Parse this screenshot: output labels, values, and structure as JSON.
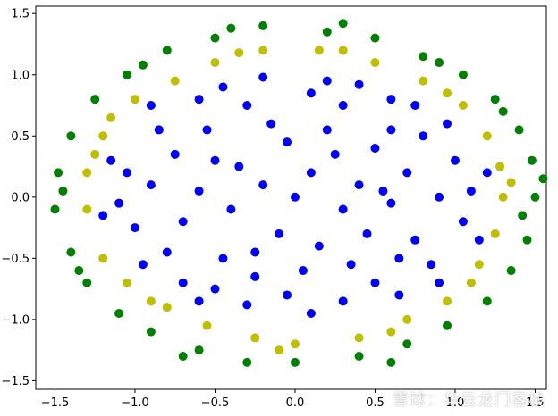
{
  "chart_data": {
    "type": "scatter",
    "title": "",
    "xlabel": "",
    "ylabel": "",
    "xlim": [
      -1.62,
      1.57
    ],
    "ylim": [
      -1.57,
      1.56
    ],
    "grid": false,
    "legend": "none",
    "x_ticks": [
      -1.5,
      -1.0,
      -0.5,
      0.0,
      0.5,
      1.0,
      1.5
    ],
    "x_tick_labels": [
      "−1.5",
      "−1.0",
      "−0.5",
      "0.0",
      "0.5",
      "1.0",
      "1.5"
    ],
    "y_ticks": [
      -1.5,
      -1.0,
      -0.5,
      0.0,
      0.5,
      1.0,
      1.5
    ],
    "y_tick_labels": [
      "−1.5",
      "−1.0",
      "−0.5",
      "0.0",
      "0.5",
      "1.0",
      "1.5"
    ],
    "series": [
      {
        "color": "#0000ff",
        "points": [
          [
            0.0,
            0.0
          ],
          [
            0.1,
            0.2
          ],
          [
            -0.2,
            0.1
          ],
          [
            0.3,
            -0.1
          ],
          [
            -0.1,
            -0.3
          ],
          [
            0.25,
            0.35
          ],
          [
            -0.35,
            0.25
          ],
          [
            0.4,
            0.1
          ],
          [
            -0.4,
            -0.1
          ],
          [
            0.15,
            -0.4
          ],
          [
            -0.25,
            -0.45
          ],
          [
            0.45,
            -0.3
          ],
          [
            -0.5,
            0.3
          ],
          [
            0.5,
            0.4
          ],
          [
            0.2,
            0.55
          ],
          [
            -0.15,
            0.6
          ],
          [
            0.6,
            -0.05
          ],
          [
            -0.6,
            0.05
          ],
          [
            0.05,
            -0.6
          ],
          [
            0.35,
            -0.55
          ],
          [
            -0.45,
            -0.5
          ],
          [
            0.6,
            0.55
          ],
          [
            -0.55,
            0.55
          ],
          [
            0.7,
            0.2
          ],
          [
            -0.7,
            -0.2
          ],
          [
            0.3,
            0.75
          ],
          [
            -0.3,
            0.75
          ],
          [
            0.75,
            -0.35
          ],
          [
            -0.75,
            0.35
          ],
          [
            0.1,
            0.85
          ],
          [
            -0.05,
            -0.8
          ],
          [
            0.5,
            -0.7
          ],
          [
            -0.5,
            -0.75
          ],
          [
            0.8,
            0.5
          ],
          [
            -0.8,
            -0.45
          ],
          [
            0.9,
            0.0
          ],
          [
            -0.9,
            0.1
          ],
          [
            0.85,
            -0.55
          ],
          [
            -0.85,
            0.55
          ],
          [
            0.6,
            0.8
          ],
          [
            -0.6,
            0.8
          ],
          [
            0.3,
            -0.85
          ],
          [
            -0.3,
            -0.88
          ],
          [
            1.0,
            0.3
          ],
          [
            -1.0,
            -0.25
          ],
          [
            1.05,
            -0.2
          ],
          [
            -1.05,
            0.2
          ],
          [
            0.95,
            0.6
          ],
          [
            -0.95,
            -0.55
          ],
          [
            0.2,
            0.95
          ],
          [
            -0.2,
            0.98
          ],
          [
            0.75,
            0.75
          ],
          [
            -0.7,
            -0.7
          ],
          [
            0.65,
            -0.8
          ],
          [
            1.1,
            0.05
          ],
          [
            -1.1,
            -0.05
          ],
          [
            1.15,
            -0.35
          ],
          [
            -1.15,
            0.3
          ],
          [
            0.4,
            0.92
          ],
          [
            -0.45,
            0.9
          ],
          [
            0.1,
            -0.95
          ],
          [
            -0.6,
            -0.85
          ],
          [
            0.9,
            -0.7
          ],
          [
            -0.9,
            0.75
          ],
          [
            1.2,
            0.2
          ],
          [
            -1.2,
            -0.15
          ],
          [
            0.55,
            0.05
          ],
          [
            -0.05,
            0.45
          ],
          [
            0.65,
            -0.5
          ],
          [
            -0.25,
            -0.65
          ]
        ]
      },
      {
        "color": "#bfbf00",
        "points": [
          [
            1.3,
            0.0
          ],
          [
            1.28,
            0.25
          ],
          [
            1.25,
            -0.3
          ],
          [
            1.2,
            0.5
          ],
          [
            1.15,
            -0.55
          ],
          [
            1.05,
            0.75
          ],
          [
            0.95,
            -0.85
          ],
          [
            0.8,
            0.95
          ],
          [
            0.7,
            -1.0
          ],
          [
            0.5,
            1.1
          ],
          [
            0.4,
            -1.15
          ],
          [
            0.15,
            1.2
          ],
          [
            0.0,
            -1.2
          ],
          [
            -0.2,
            1.2
          ],
          [
            -0.25,
            -1.15
          ],
          [
            -0.5,
            1.1
          ],
          [
            -0.55,
            -1.05
          ],
          [
            -0.75,
            0.95
          ],
          [
            -0.8,
            -0.9
          ],
          [
            -1.0,
            0.8
          ],
          [
            -1.05,
            -0.7
          ],
          [
            -1.2,
            0.5
          ],
          [
            -1.2,
            -0.5
          ],
          [
            -1.3,
            0.2
          ],
          [
            -1.3,
            -0.1
          ],
          [
            1.35,
            0.12
          ],
          [
            -1.25,
            0.35
          ],
          [
            0.3,
            1.2
          ],
          [
            -0.35,
            1.18
          ],
          [
            0.95,
            0.85
          ],
          [
            -0.9,
            -0.85
          ],
          [
            0.6,
            -1.1
          ],
          [
            -0.1,
            -1.25
          ],
          [
            1.1,
            -0.7
          ],
          [
            -1.15,
            0.65
          ]
        ]
      },
      {
        "color": "#008000",
        "points": [
          [
            1.5,
            0.0
          ],
          [
            1.48,
            0.3
          ],
          [
            1.45,
            -0.35
          ],
          [
            1.4,
            0.55
          ],
          [
            1.35,
            -0.6
          ],
          [
            1.25,
            0.8
          ],
          [
            1.2,
            -0.85
          ],
          [
            1.05,
            1.0
          ],
          [
            0.95,
            -1.05
          ],
          [
            0.8,
            1.15
          ],
          [
            0.7,
            -1.2
          ],
          [
            0.5,
            1.3
          ],
          [
            0.4,
            -1.3
          ],
          [
            0.2,
            1.35
          ],
          [
            0.0,
            -1.35
          ],
          [
            -0.2,
            1.4
          ],
          [
            -0.3,
            -1.35
          ],
          [
            -0.5,
            1.3
          ],
          [
            -0.6,
            -1.25
          ],
          [
            -0.8,
            1.2
          ],
          [
            -0.9,
            -1.1
          ],
          [
            -1.05,
            1.0
          ],
          [
            -1.1,
            -0.95
          ],
          [
            -1.25,
            0.8
          ],
          [
            -1.3,
            -0.7
          ],
          [
            -1.4,
            0.5
          ],
          [
            -1.4,
            -0.45
          ],
          [
            -1.48,
            0.2
          ],
          [
            -1.5,
            -0.1
          ],
          [
            1.55,
            0.15
          ],
          [
            1.42,
            -0.15
          ],
          [
            -1.45,
            0.05
          ],
          [
            0.3,
            1.42
          ],
          [
            -0.4,
            1.38
          ],
          [
            0.6,
            -1.35
          ],
          [
            -0.7,
            -1.3
          ],
          [
            1.3,
            0.7
          ],
          [
            -1.35,
            -0.6
          ],
          [
            0.9,
            1.1
          ],
          [
            -0.95,
            1.08
          ]
        ]
      }
    ]
  },
  "watermark": "雪球：华云龙门客栈"
}
